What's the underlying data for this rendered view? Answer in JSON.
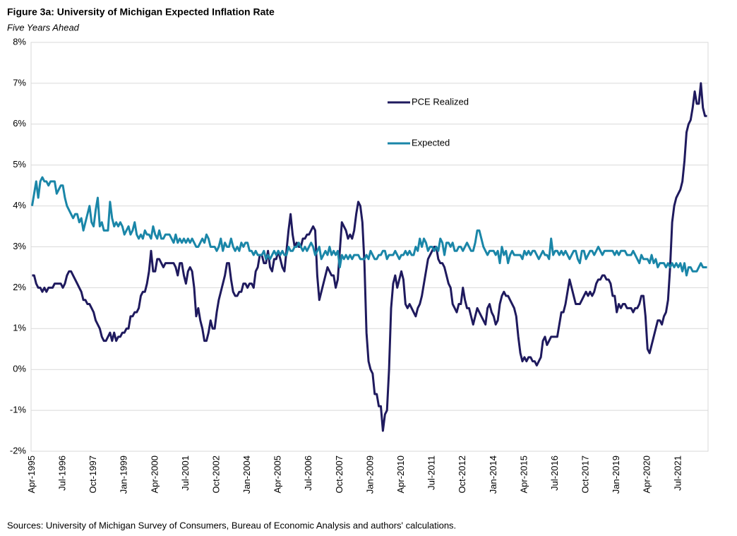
{
  "chart_data": {
    "type": "line",
    "title": "Figure 3a: University of Michigan Expected Inflation Rate",
    "subtitle": "Five Years Ahead",
    "source": "Sources: University of Michigan Survey of Consumers, Bureau of Economic Analysis and authors' calculations.",
    "categories": [
      "Apr-1995",
      null,
      null,
      null,
      null,
      null,
      null,
      null,
      null,
      null,
      null,
      null,
      null,
      null,
      null,
      "Jul-1996",
      null,
      null,
      null,
      null,
      null,
      null,
      null,
      null,
      null,
      null,
      null,
      null,
      null,
      null,
      "Oct-1997",
      null,
      null,
      null,
      null,
      null,
      null,
      null,
      null,
      null,
      null,
      null,
      null,
      null,
      null,
      "Jan-1999",
      null,
      null,
      null,
      null,
      null,
      null,
      null,
      null,
      null,
      null,
      null,
      null,
      null,
      null,
      "Apr-2000",
      null,
      null,
      null,
      null,
      null,
      null,
      null,
      null,
      null,
      null,
      null,
      null,
      null,
      null,
      "Jul-2001",
      null,
      null,
      null,
      null,
      null,
      null,
      null,
      null,
      null,
      null,
      null,
      null,
      null,
      null,
      "Oct-2002",
      null,
      null,
      null,
      null,
      null,
      null,
      null,
      null,
      null,
      null,
      null,
      null,
      null,
      null,
      "Jan-2004",
      null,
      null,
      null,
      null,
      null,
      null,
      null,
      null,
      null,
      null,
      null,
      null,
      null,
      null,
      "Apr-2005",
      null,
      null,
      null,
      null,
      null,
      null,
      null,
      null,
      null,
      null,
      null,
      null,
      null,
      null,
      "Jul-2006",
      null,
      null,
      null,
      null,
      null,
      null,
      null,
      null,
      null,
      null,
      null,
      null,
      null,
      null,
      "Oct-2007",
      null,
      null,
      null,
      null,
      null,
      null,
      null,
      null,
      null,
      null,
      null,
      null,
      null,
      null,
      "Jan-2009",
      null,
      null,
      null,
      null,
      null,
      null,
      null,
      null,
      null,
      null,
      null,
      null,
      null,
      null,
      "Apr-2010",
      null,
      null,
      null,
      null,
      null,
      null,
      null,
      null,
      null,
      null,
      null,
      null,
      null,
      null,
      "Jul-2011",
      null,
      null,
      null,
      null,
      null,
      null,
      null,
      null,
      null,
      null,
      null,
      null,
      null,
      null,
      "Oct-2012",
      null,
      null,
      null,
      null,
      null,
      null,
      null,
      null,
      null,
      null,
      null,
      null,
      null,
      null,
      "Jan-2014",
      null,
      null,
      null,
      null,
      null,
      null,
      null,
      null,
      null,
      null,
      null,
      null,
      null,
      null,
      "Apr-2015",
      null,
      null,
      null,
      null,
      null,
      null,
      null,
      null,
      null,
      null,
      null,
      null,
      null,
      null,
      "Jul-2016",
      null,
      null,
      null,
      null,
      null,
      null,
      null,
      null,
      null,
      null,
      null,
      null,
      null,
      null,
      "Oct-2017",
      null,
      null,
      null,
      null,
      null,
      null,
      null,
      null,
      null,
      null,
      null,
      null,
      null,
      null,
      "Jan-2019",
      null,
      null,
      null,
      null,
      null,
      null,
      null,
      null,
      null,
      null,
      null,
      null,
      null,
      null,
      "Apr-2020",
      null,
      null,
      null,
      null,
      null,
      null,
      null,
      null,
      null,
      null,
      null,
      null,
      null,
      null,
      "Jul-2021",
      null,
      null,
      null,
      null,
      null,
      null,
      null,
      null,
      null,
      null,
      null,
      null,
      null,
      null
    ],
    "series": [
      {
        "name": "PCE Realized",
        "color": "#1f1a5e",
        "values": [
          2.3,
          2.3,
          2.1,
          2.0,
          2.0,
          1.9,
          2.0,
          1.9,
          2.0,
          2.0,
          2.0,
          2.1,
          2.1,
          2.1,
          2.1,
          2.0,
          2.1,
          2.3,
          2.4,
          2.4,
          2.3,
          2.2,
          2.1,
          2.0,
          1.9,
          1.7,
          1.7,
          1.6,
          1.6,
          1.5,
          1.4,
          1.2,
          1.1,
          1.0,
          0.8,
          0.7,
          0.7,
          0.8,
          0.9,
          0.7,
          0.9,
          0.7,
          0.8,
          0.8,
          0.9,
          0.9,
          1.0,
          1.0,
          1.3,
          1.3,
          1.4,
          1.4,
          1.5,
          1.8,
          1.9,
          1.9,
          2.1,
          2.4,
          2.9,
          2.4,
          2.4,
          2.7,
          2.7,
          2.6,
          2.5,
          2.6,
          2.6,
          2.6,
          2.6,
          2.6,
          2.5,
          2.3,
          2.6,
          2.6,
          2.3,
          2.1,
          2.4,
          2.5,
          2.4,
          2.0,
          1.3,
          1.5,
          1.2,
          1.0,
          0.7,
          0.7,
          0.9,
          1.2,
          1.0,
          1.0,
          1.4,
          1.7,
          1.9,
          2.1,
          2.3,
          2.6,
          2.6,
          2.2,
          1.9,
          1.8,
          1.8,
          1.9,
          1.9,
          2.1,
          2.1,
          2.0,
          2.1,
          2.1,
          2.0,
          2.4,
          2.5,
          2.8,
          2.8,
          2.6,
          2.6,
          2.9,
          2.5,
          2.4,
          2.7,
          2.7,
          2.9,
          2.7,
          2.5,
          2.4,
          2.9,
          3.4,
          3.8,
          3.3,
          3.0,
          3.1,
          3.0,
          3.0,
          3.2,
          3.2,
          3.3,
          3.3,
          3.4,
          3.5,
          3.4,
          2.3,
          1.7,
          1.9,
          2.1,
          2.3,
          2.5,
          2.4,
          2.3,
          2.3,
          2.0,
          2.2,
          2.9,
          3.6,
          3.5,
          3.4,
          3.2,
          3.3,
          3.2,
          3.4,
          3.8,
          4.1,
          4.0,
          3.6,
          2.6,
          0.9,
          0.2,
          0.0,
          -0.1,
          -0.6,
          -0.6,
          -0.9,
          -0.9,
          -1.5,
          -1.1,
          -1.0,
          0.0,
          1.5,
          2.1,
          2.3,
          2.0,
          2.2,
          2.4,
          2.2,
          1.6,
          1.5,
          1.6,
          1.5,
          1.4,
          1.3,
          1.5,
          1.6,
          1.8,
          2.1,
          2.4,
          2.7,
          2.8,
          2.9,
          3.0,
          3.0,
          2.7,
          2.6,
          2.6,
          2.5,
          2.3,
          2.1,
          2.0,
          1.6,
          1.5,
          1.4,
          1.6,
          1.6,
          2.0,
          1.7,
          1.5,
          1.5,
          1.3,
          1.1,
          1.3,
          1.5,
          1.4,
          1.3,
          1.2,
          1.1,
          1.5,
          1.6,
          1.4,
          1.3,
          1.1,
          1.2,
          1.6,
          1.8,
          1.9,
          1.8,
          1.8,
          1.7,
          1.6,
          1.5,
          1.3,
          0.8,
          0.4,
          0.2,
          0.3,
          0.2,
          0.3,
          0.3,
          0.2,
          0.2,
          0.1,
          0.2,
          0.3,
          0.7,
          0.8,
          0.6,
          0.7,
          0.8,
          0.8,
          0.8,
          0.8,
          1.1,
          1.4,
          1.4,
          1.6,
          1.9,
          2.2,
          2.0,
          1.8,
          1.6,
          1.6,
          1.6,
          1.7,
          1.8,
          1.9,
          1.8,
          1.9,
          1.8,
          1.9,
          2.1,
          2.2,
          2.2,
          2.3,
          2.3,
          2.2,
          2.2,
          2.1,
          1.8,
          1.8,
          1.4,
          1.6,
          1.5,
          1.6,
          1.6,
          1.5,
          1.5,
          1.5,
          1.4,
          1.5,
          1.5,
          1.6,
          1.8,
          1.8,
          1.3,
          0.5,
          0.4,
          0.6,
          0.8,
          1.0,
          1.2,
          1.2,
          1.1,
          1.3,
          1.4,
          1.7,
          2.5,
          3.6,
          4.0,
          4.2,
          4.3,
          4.4,
          4.6,
          5.1,
          5.8,
          6.0,
          6.1,
          6.4,
          6.8,
          6.5,
          6.5,
          7.0,
          6.4,
          6.2,
          6.2
        ]
      },
      {
        "name": "Expected",
        "color": "#1a86a8",
        "values": [
          4.0,
          4.3,
          4.6,
          4.2,
          4.6,
          4.7,
          4.6,
          4.6,
          4.5,
          4.6,
          4.6,
          4.6,
          4.3,
          4.4,
          4.5,
          4.5,
          4.2,
          4.0,
          3.9,
          3.8,
          3.7,
          3.8,
          3.8,
          3.6,
          3.7,
          3.4,
          3.6,
          3.8,
          4.0,
          3.6,
          3.5,
          3.9,
          4.2,
          3.5,
          3.6,
          3.4,
          3.4,
          3.4,
          4.1,
          3.7,
          3.5,
          3.6,
          3.5,
          3.6,
          3.5,
          3.3,
          3.4,
          3.5,
          3.3,
          3.4,
          3.6,
          3.3,
          3.2,
          3.3,
          3.2,
          3.4,
          3.3,
          3.3,
          3.2,
          3.5,
          3.3,
          3.2,
          3.4,
          3.2,
          3.2,
          3.3,
          3.3,
          3.3,
          3.2,
          3.1,
          3.3,
          3.1,
          3.2,
          3.1,
          3.2,
          3.1,
          3.2,
          3.1,
          3.2,
          3.1,
          3.0,
          3.0,
          3.1,
          3.2,
          3.1,
          3.3,
          3.2,
          3.0,
          3.0,
          3.0,
          2.9,
          3.0,
          3.2,
          2.9,
          3.1,
          3.0,
          3.0,
          3.2,
          3.0,
          2.9,
          3.0,
          2.9,
          3.1,
          3.0,
          3.1,
          3.1,
          2.9,
          2.9,
          2.8,
          2.9,
          2.8,
          2.8,
          2.8,
          2.9,
          2.7,
          2.8,
          2.7,
          2.8,
          2.9,
          2.8,
          2.9,
          2.8,
          2.9,
          2.8,
          2.8,
          3.0,
          2.9,
          2.9,
          3.0,
          3.0,
          3.1,
          3.0,
          2.9,
          3.0,
          2.9,
          3.0,
          3.1,
          3.0,
          2.8,
          2.9,
          3.0,
          2.7,
          2.8,
          2.9,
          2.8,
          3.0,
          2.8,
          2.9,
          2.8,
          2.9,
          2.5,
          2.8,
          2.7,
          2.8,
          2.7,
          2.8,
          2.7,
          2.8,
          2.8,
          2.8,
          2.7,
          2.7,
          2.7,
          2.8,
          2.7,
          2.9,
          2.8,
          2.7,
          2.7,
          2.8,
          2.8,
          2.9,
          2.9,
          2.7,
          2.8,
          2.8,
          2.8,
          2.9,
          2.8,
          2.7,
          2.8,
          2.8,
          2.9,
          2.8,
          2.9,
          2.8,
          2.8,
          3.0,
          2.9,
          3.2,
          3.0,
          3.2,
          3.1,
          2.9,
          3.0,
          3.0,
          2.9,
          3.0,
          2.9,
          3.2,
          3.1,
          2.8,
          3.1,
          3.1,
          3.0,
          3.1,
          2.9,
          2.9,
          3.0,
          3.0,
          2.9,
          3.0,
          3.1,
          3.0,
          2.9,
          2.9,
          3.1,
          3.4,
          3.4,
          3.2,
          3.0,
          2.9,
          2.8,
          2.9,
          2.9,
          2.9,
          2.8,
          2.9,
          2.6,
          3.0,
          2.8,
          2.9,
          2.6,
          2.8,
          2.9,
          2.8,
          2.8,
          2.8,
          2.8,
          2.7,
          2.9,
          2.8,
          2.9,
          2.8,
          2.9,
          2.9,
          2.8,
          2.7,
          2.8,
          2.9,
          2.8,
          2.8,
          2.7,
          3.2,
          2.8,
          2.9,
          2.9,
          2.8,
          2.9,
          2.8,
          2.9,
          2.8,
          2.7,
          2.8,
          2.9,
          2.9,
          2.7,
          2.6,
          2.9,
          2.9,
          2.7,
          2.8,
          2.9,
          2.9,
          2.8,
          2.9,
          3.0,
          2.9,
          2.8,
          2.9,
          2.9,
          2.9,
          2.9,
          2.9,
          2.8,
          2.9,
          2.8,
          2.9,
          2.9,
          2.9,
          2.8,
          2.8,
          2.8,
          2.9,
          2.8,
          2.7,
          2.6,
          2.8,
          2.7,
          2.7,
          2.7,
          2.6,
          2.8,
          2.6,
          2.7,
          2.5,
          2.6,
          2.6,
          2.6,
          2.5,
          2.6,
          2.5,
          2.6,
          2.5,
          2.6,
          2.5,
          2.6,
          2.4,
          2.6,
          2.3,
          2.5,
          2.5,
          2.4,
          2.4,
          2.4,
          2.5,
          2.6,
          2.5,
          2.5,
          2.5
        ]
      }
    ],
    "ylim": [
      -2,
      8
    ],
    "yticks": [
      {
        "value": -2,
        "label": "-2%"
      },
      {
        "value": -1,
        "label": "-1%"
      },
      {
        "value": 0,
        "label": "0%"
      },
      {
        "value": 1,
        "label": "1%"
      },
      {
        "value": 2,
        "label": "2%"
      },
      {
        "value": 3,
        "label": "3%"
      },
      {
        "value": 4,
        "label": "4%"
      },
      {
        "value": 5,
        "label": "5%"
      },
      {
        "value": 6,
        "label": "6%"
      },
      {
        "value": 7,
        "label": "7%"
      },
      {
        "value": 8,
        "label": "8%"
      }
    ],
    "grid": true
  }
}
